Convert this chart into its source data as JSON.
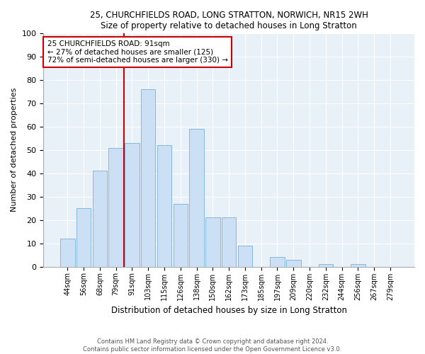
{
  "title1": "25, CHURCHFIELDS ROAD, LONG STRATTON, NORWICH, NR15 2WH",
  "title2": "Size of property relative to detached houses in Long Stratton",
  "xlabel": "Distribution of detached houses by size in Long Stratton",
  "ylabel": "Number of detached properties",
  "categories": [
    "44sqm",
    "56sqm",
    "68sqm",
    "79sqm",
    "91sqm",
    "103sqm",
    "115sqm",
    "126sqm",
    "138sqm",
    "150sqm",
    "162sqm",
    "173sqm",
    "185sqm",
    "197sqm",
    "209sqm",
    "220sqm",
    "232sqm",
    "244sqm",
    "256sqm",
    "267sqm",
    "279sqm"
  ],
  "values": [
    12,
    25,
    41,
    51,
    53,
    76,
    52,
    27,
    59,
    21,
    21,
    9,
    0,
    4,
    3,
    0,
    1,
    0,
    1,
    0,
    0
  ],
  "bar_color": "#cce0f5",
  "bar_edge_color": "#7ab0d8",
  "vline_color": "#cc0000",
  "annotation_text": "25 CHURCHFIELDS ROAD: 91sqm\n← 27% of detached houses are smaller (125)\n72% of semi-detached houses are larger (330) →",
  "annotation_box_color": "#ffffff",
  "annotation_box_edge": "#cc0000",
  "footer1": "Contains HM Land Registry data © Crown copyright and database right 2024.",
  "footer2": "Contains public sector information licensed under the Open Government Licence v3.0.",
  "ylim": [
    0,
    100
  ],
  "plot_bg": "#e8f0f8"
}
